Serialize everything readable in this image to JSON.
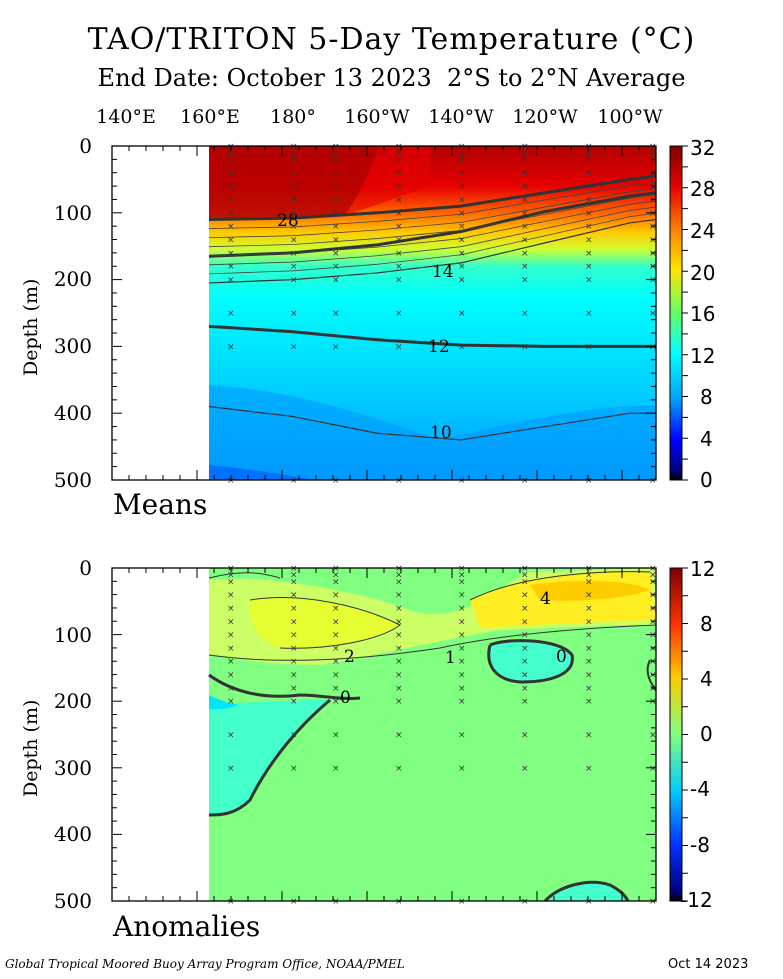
{
  "title": "TAO/TRITON 5-Day Temperature (°C)",
  "subtitle": "End Date: October 13 2023  2°S to 2°N Average",
  "longitude_labels": [
    "140°E",
    "160°E",
    "180°",
    "160°W",
    "140°W",
    "120°W",
    "100°W"
  ],
  "footer": {
    "credit": "Global Tropical Moored Buoy Array Program Office, NOAA/PMEL",
    "date": "Oct 14 2023"
  },
  "chart_data": [
    {
      "type": "heatmap",
      "panel_label": "Means",
      "ylabel": "Depth (m)",
      "y_ticks": [
        "0",
        "100",
        "200",
        "300",
        "400",
        "500"
      ],
      "ylim": [
        500,
        0
      ],
      "x_ticks": [
        "140°E",
        "160°E",
        "180°",
        "160°W",
        "140°W",
        "120°W",
        "100°W"
      ],
      "colorbar_ticks": [
        "32",
        "28",
        "24",
        "20",
        "16",
        "12",
        "8",
        "4",
        "0"
      ],
      "colorbar_range": [
        0,
        32
      ],
      "contour_labels": [
        "28",
        "14",
        "12",
        "10"
      ],
      "isotherm_depths_m": {
        "longitudes": [
          "160°E",
          "180°",
          "160°W",
          "140°W",
          "120°W",
          "100°W",
          "95°W"
        ],
        "t28": [
          110,
          108,
          100,
          90,
          70,
          50,
          45
        ],
        "t20": [
          165,
          160,
          148,
          128,
          98,
          75,
          70
        ],
        "t14": [
          205,
          200,
          190,
          175,
          145,
          115,
          110
        ],
        "t12": [
          270,
          278,
          290,
          298,
          300,
          300,
          300
        ],
        "t10": [
          390,
          405,
          430,
          440,
          420,
          400,
          400
        ]
      }
    },
    {
      "type": "heatmap",
      "panel_label": "Anomalies",
      "ylabel": "Depth (m)",
      "y_ticks": [
        "0",
        "100",
        "200",
        "300",
        "400",
        "500"
      ],
      "ylim": [
        500,
        0
      ],
      "colorbar_ticks": [
        "12",
        "8",
        "4",
        "0",
        "-4",
        "-8",
        "-12"
      ],
      "colorbar_range": [
        -12,
        12
      ],
      "contour_labels": [
        "4",
        "2",
        "1",
        "0",
        "0"
      ]
    }
  ]
}
